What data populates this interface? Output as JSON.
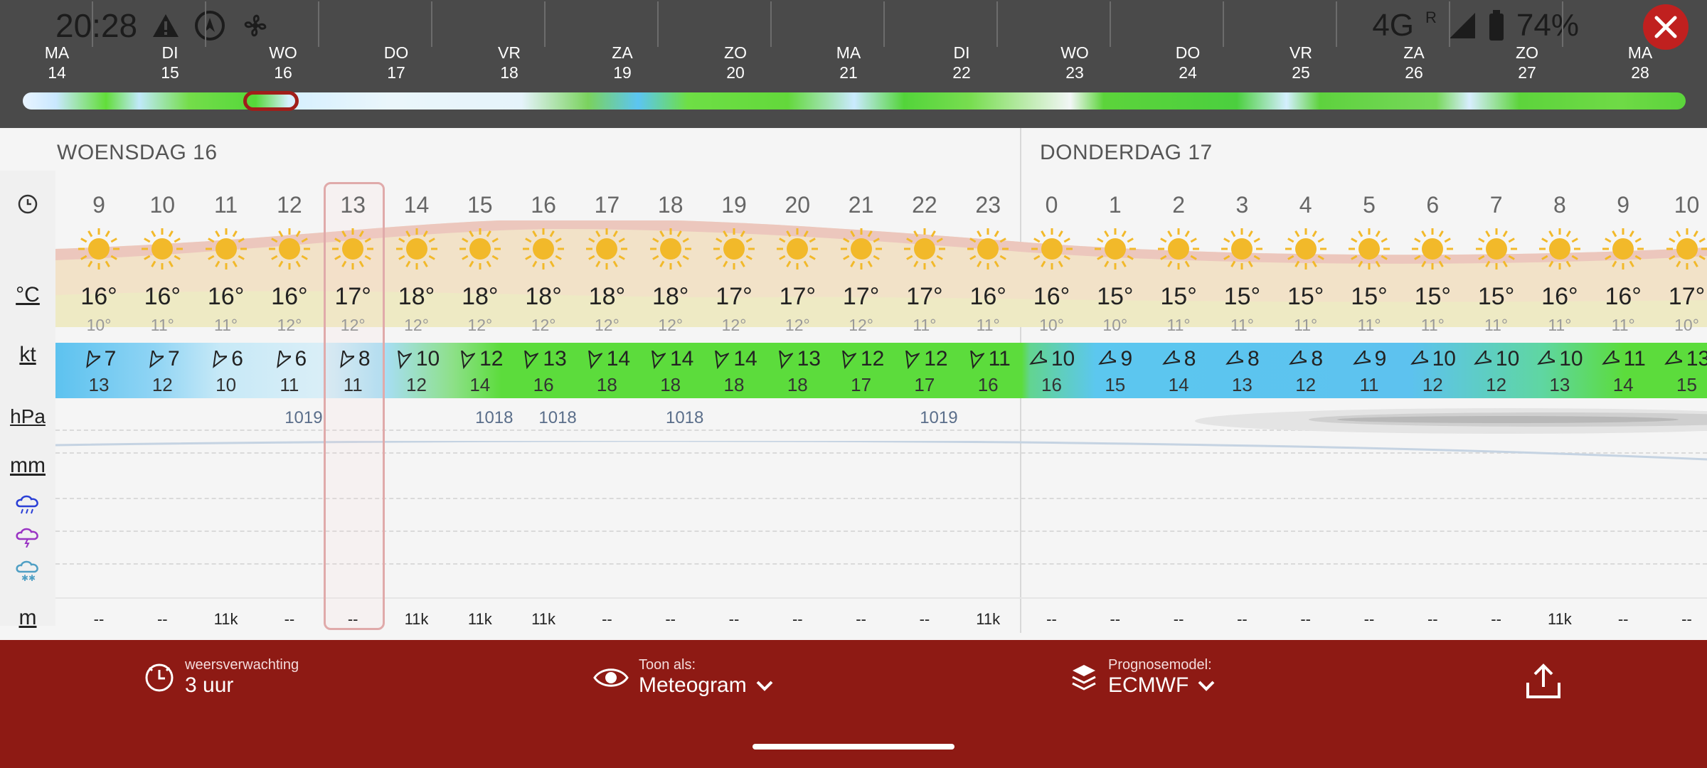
{
  "status": {
    "time": "20:28",
    "network": "4G",
    "roaming": "R",
    "battery": "74%"
  },
  "timeline_days": [
    {
      "dow": "MA",
      "date": "14"
    },
    {
      "dow": "DI",
      "date": "15"
    },
    {
      "dow": "WO",
      "date": "16"
    },
    {
      "dow": "DO",
      "date": "17"
    },
    {
      "dow": "VR",
      "date": "18"
    },
    {
      "dow": "ZA",
      "date": "19"
    },
    {
      "dow": "ZO",
      "date": "20"
    },
    {
      "dow": "MA",
      "date": "21"
    },
    {
      "dow": "DI",
      "date": "22"
    },
    {
      "dow": "WO",
      "date": "23"
    },
    {
      "dow": "DO",
      "date": "24"
    },
    {
      "dow": "VR",
      "date": "25"
    },
    {
      "dow": "ZA",
      "date": "26"
    },
    {
      "dow": "ZO",
      "date": "27"
    },
    {
      "dow": "MA",
      "date": "28"
    }
  ],
  "day_titles": [
    "WOENSDAG 16",
    "DONDERDAG 17"
  ],
  "row_labels": {
    "temp": "°C",
    "wind": "kt",
    "pressure": "hPa",
    "precip": "mm",
    "visibility": "m"
  },
  "hours": [
    "9",
    "10",
    "11",
    "12",
    "13",
    "14",
    "15",
    "16",
    "17",
    "18",
    "19",
    "20",
    "21",
    "22",
    "23",
    "0",
    "1",
    "2",
    "3",
    "4",
    "5",
    "6",
    "7",
    "8",
    "9",
    "10"
  ],
  "temps": [
    "16°",
    "16°",
    "16°",
    "16°",
    "17°",
    "18°",
    "18°",
    "18°",
    "18°",
    "18°",
    "17°",
    "17°",
    "17°",
    "17°",
    "16°",
    "16°",
    "15°",
    "15°",
    "15°",
    "15°",
    "15°",
    "15°",
    "15°",
    "16°",
    "16°",
    "17°"
  ],
  "temps_min": [
    "10°",
    "11°",
    "11°",
    "12°",
    "12°",
    "12°",
    "12°",
    "12°",
    "12°",
    "12°",
    "12°",
    "12°",
    "12°",
    "11°",
    "11°",
    "10°",
    "10°",
    "11°",
    "11°",
    "11°",
    "11°",
    "11°",
    "11°",
    "11°",
    "11°",
    "10°"
  ],
  "wind_speed": [
    "7",
    "7",
    "6",
    "6",
    "8",
    "10",
    "12",
    "13",
    "14",
    "14",
    "14",
    "13",
    "12",
    "12",
    "11",
    "10",
    "9",
    "8",
    "8",
    "8",
    "9",
    "10",
    "10",
    "10",
    "11",
    "13"
  ],
  "wind_gust": [
    "13",
    "12",
    "10",
    "11",
    "11",
    "12",
    "14",
    "16",
    "18",
    "18",
    "18",
    "18",
    "17",
    "17",
    "16",
    "16",
    "15",
    "14",
    "13",
    "12",
    "11",
    "12",
    "12",
    "13",
    "14",
    "15"
  ],
  "pressure": [
    "",
    "",
    "",
    "1019",
    "",
    "",
    "1018",
    "1018",
    "",
    "1018",
    "",
    "",
    "",
    "1019",
    "",
    "",
    "",
    "",
    "",
    "",
    "",
    "",
    "",
    "",
    "",
    ""
  ],
  "visibility": [
    "--",
    "--",
    "11k",
    "--",
    "--",
    "11k",
    "11k",
    "11k",
    "--",
    "--",
    "--",
    "--",
    "--",
    "--",
    "11k",
    "--",
    "--",
    "--",
    "--",
    "--",
    "--",
    "--",
    "--",
    "11k",
    "--",
    "--"
  ],
  "bottom": {
    "forecast_label": "weersverwachting",
    "forecast_value": "3 uur",
    "view_label": "Toon als:",
    "view_value": "Meteogram",
    "model_label": "Prognosemodel:",
    "model_value": "ECMWF"
  },
  "colors": {
    "accent": "#8e1a14",
    "wind_green": "#5cdc3c",
    "wind_blue": "#62c7f0",
    "sun": "#f2b92a"
  }
}
